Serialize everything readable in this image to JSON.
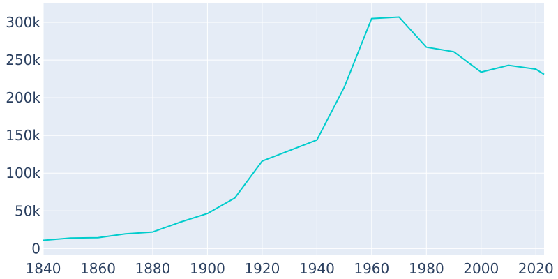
{
  "chart_data": {
    "type": "line",
    "title": "",
    "xlabel": "",
    "ylabel": "",
    "xlim": [
      1840,
      2023
    ],
    "ylim": [
      -8000,
      325000
    ],
    "grid": true,
    "legend": "none",
    "background_color": "#e5ecf6",
    "line_color": "#00cccc",
    "x_ticks": [
      {
        "value": 1840,
        "label": "1840"
      },
      {
        "value": 1860,
        "label": "1860"
      },
      {
        "value": 1880,
        "label": "1880"
      },
      {
        "value": 1900,
        "label": "1900"
      },
      {
        "value": 1920,
        "label": "1920"
      },
      {
        "value": 1940,
        "label": "1940"
      },
      {
        "value": 1960,
        "label": "1960"
      },
      {
        "value": 1980,
        "label": "1980"
      },
      {
        "value": 2000,
        "label": "2000"
      },
      {
        "value": 2020,
        "label": "2020"
      }
    ],
    "y_ticks": [
      {
        "value": 0,
        "label": "0"
      },
      {
        "value": 50000,
        "label": "50k"
      },
      {
        "value": 100000,
        "label": "100k"
      },
      {
        "value": 150000,
        "label": "150k"
      },
      {
        "value": 200000,
        "label": "200k"
      },
      {
        "value": 250000,
        "label": "250k"
      },
      {
        "value": 300000,
        "label": "300k"
      }
    ],
    "series": [
      {
        "x": [
          1840,
          1850,
          1860,
          1870,
          1880,
          1890,
          1900,
          1910,
          1920,
          1930,
          1940,
          1950,
          1960,
          1970,
          1980,
          1990,
          2000,
          2010,
          2020,
          2023
        ],
        "y": [
          11000,
          14000,
          14500,
          19500,
          22000,
          35000,
          46500,
          67000,
          116000,
          130000,
          144000,
          214000,
          305000,
          307000,
          267000,
          261000,
          234000,
          243000,
          238000,
          231000
        ]
      }
    ]
  }
}
